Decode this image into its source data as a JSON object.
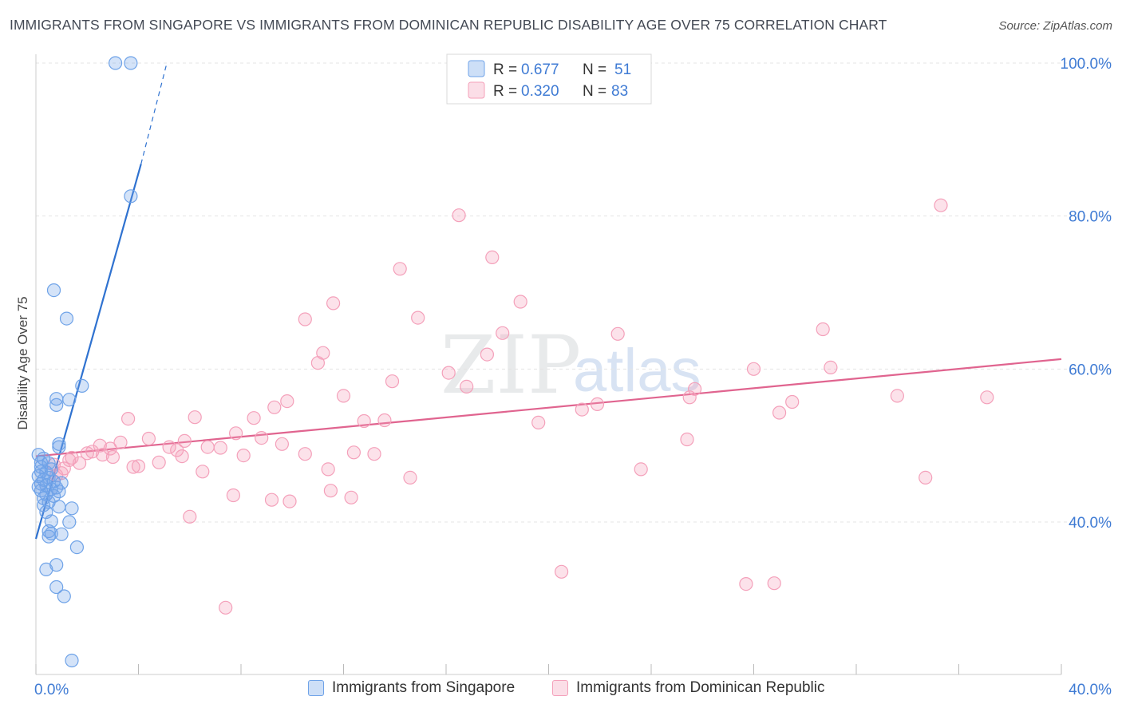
{
  "title": "IMMIGRANTS FROM SINGAPORE VS IMMIGRANTS FROM DOMINICAN REPUBLIC DISABILITY AGE OVER 75 CORRELATION CHART",
  "source": "Source: ZipAtlas.com",
  "watermark": {
    "zip": "ZIP",
    "atlas": "atlas"
  },
  "legend_top": [
    {
      "r_label": "R =",
      "r_value": "0.677",
      "n_label": "N =",
      "n_value": "51"
    },
    {
      "r_label": "R =",
      "r_value": "0.320",
      "n_label": "N =",
      "n_value": "83"
    }
  ],
  "chart_data": {
    "type": "scatter",
    "title": "IMMIGRANTS FROM SINGAPORE VS IMMIGRANTS FROM DOMINICAN REPUBLIC DISABILITY AGE OVER 75 CORRELATION CHART",
    "xlabel": "",
    "ylabel": "Disability Age Over 75",
    "xlim": [
      0,
      40
    ],
    "ylim": [
      22,
      101
    ],
    "x_tick_labels": [
      {
        "value": 0,
        "label": "0.0%"
      },
      {
        "value": 40,
        "label": "40.0%"
      }
    ],
    "y_tick_labels": [
      {
        "value": 40,
        "label": "40.0%"
      },
      {
        "value": 60,
        "label": "60.0%"
      },
      {
        "value": 80,
        "label": "80.0%"
      },
      {
        "value": 100,
        "label": "100.0%"
      }
    ],
    "colors": {
      "singapore": "#6fa3e8",
      "singapore_line": "#2f72d0",
      "dominican": "#f4a0ba",
      "dominican_line": "#e0648f",
      "tick_label": "#3f7bd4"
    },
    "series": [
      {
        "name": "Immigrants from Singapore",
        "r": 0.677,
        "n": 51,
        "trend": {
          "x0": 0.0,
          "y0": 37.8,
          "x1": 4.1,
          "y1": 86.8,
          "dash_to_x": 5.1,
          "dash_to_y": 99.9
        },
        "points": [
          [
            3.1,
            100.0
          ],
          [
            3.7,
            100.0
          ],
          [
            3.7,
            82.6
          ],
          [
            0.7,
            70.3
          ],
          [
            1.2,
            66.6
          ],
          [
            1.8,
            57.8
          ],
          [
            0.8,
            56.1
          ],
          [
            1.3,
            56.0
          ],
          [
            0.8,
            55.3
          ],
          [
            0.9,
            50.2
          ],
          [
            0.9,
            49.8
          ],
          [
            0.1,
            48.8
          ],
          [
            0.3,
            48.3
          ],
          [
            0.5,
            47.7
          ],
          [
            0.2,
            47.2
          ],
          [
            0.6,
            46.9
          ],
          [
            0.2,
            46.6
          ],
          [
            0.4,
            46.5
          ],
          [
            0.1,
            46.0
          ],
          [
            0.5,
            45.8
          ],
          [
            0.3,
            45.5
          ],
          [
            0.7,
            45.3
          ],
          [
            1.0,
            45.1
          ],
          [
            0.2,
            45.0
          ],
          [
            0.4,
            44.8
          ],
          [
            0.8,
            44.5
          ],
          [
            0.6,
            44.3
          ],
          [
            0.2,
            44.1
          ],
          [
            0.9,
            44.0
          ],
          [
            0.4,
            43.6
          ],
          [
            0.3,
            43.1
          ],
          [
            0.5,
            42.6
          ],
          [
            0.3,
            42.2
          ],
          [
            0.9,
            42.0
          ],
          [
            1.4,
            41.8
          ],
          [
            0.4,
            41.3
          ],
          [
            0.6,
            40.1
          ],
          [
            1.3,
            40.0
          ],
          [
            0.5,
            38.8
          ],
          [
            0.6,
            38.5
          ],
          [
            1.0,
            38.4
          ],
          [
            0.5,
            38.1
          ],
          [
            1.6,
            36.7
          ],
          [
            0.8,
            34.4
          ],
          [
            0.4,
            33.8
          ],
          [
            0.8,
            31.5
          ],
          [
            1.1,
            30.3
          ],
          [
            1.4,
            21.9
          ],
          [
            0.2,
            47.8
          ],
          [
            0.7,
            43.4
          ],
          [
            0.1,
            44.6
          ]
        ]
      },
      {
        "name": "Immigrants from Dominican Republic",
        "r": 0.32,
        "n": 83,
        "trend": {
          "x0": 0.0,
          "y0": 48.6,
          "x1": 40.0,
          "y1": 61.3
        },
        "points": [
          [
            35.3,
            81.4
          ],
          [
            16.5,
            80.1
          ],
          [
            17.8,
            74.6
          ],
          [
            14.2,
            73.1
          ],
          [
            18.9,
            68.8
          ],
          [
            11.6,
            68.6
          ],
          [
            10.5,
            66.5
          ],
          [
            14.9,
            66.7
          ],
          [
            30.7,
            65.2
          ],
          [
            22.7,
            64.6
          ],
          [
            18.2,
            64.7
          ],
          [
            11.2,
            62.1
          ],
          [
            17.6,
            61.9
          ],
          [
            11.0,
            60.8
          ],
          [
            28.0,
            60.0
          ],
          [
            31.0,
            60.2
          ],
          [
            16.1,
            59.5
          ],
          [
            13.9,
            58.4
          ],
          [
            16.8,
            57.7
          ],
          [
            25.7,
            57.4
          ],
          [
            12.0,
            56.5
          ],
          [
            25.5,
            56.3
          ],
          [
            33.6,
            56.5
          ],
          [
            37.1,
            56.3
          ],
          [
            9.8,
            55.8
          ],
          [
            29.5,
            55.7
          ],
          [
            21.9,
            55.4
          ],
          [
            9.3,
            55.0
          ],
          [
            21.3,
            54.7
          ],
          [
            29.0,
            54.3
          ],
          [
            3.6,
            53.5
          ],
          [
            6.2,
            53.7
          ],
          [
            8.5,
            53.6
          ],
          [
            12.8,
            53.2
          ],
          [
            13.6,
            53.3
          ],
          [
            19.6,
            53.0
          ],
          [
            7.8,
            51.6
          ],
          [
            8.8,
            51.0
          ],
          [
            4.4,
            50.9
          ],
          [
            5.8,
            50.6
          ],
          [
            25.4,
            50.8
          ],
          [
            3.3,
            50.4
          ],
          [
            9.6,
            50.2
          ],
          [
            2.5,
            50.0
          ],
          [
            5.2,
            49.8
          ],
          [
            7.2,
            49.7
          ],
          [
            2.9,
            49.6
          ],
          [
            5.5,
            49.4
          ],
          [
            6.7,
            49.8
          ],
          [
            2.2,
            49.2
          ],
          [
            12.4,
            49.1
          ],
          [
            2.0,
            49.0
          ],
          [
            13.2,
            48.9
          ],
          [
            10.5,
            48.9
          ],
          [
            8.1,
            48.7
          ],
          [
            5.7,
            48.6
          ],
          [
            1.4,
            48.4
          ],
          [
            3.0,
            48.5
          ],
          [
            1.7,
            47.7
          ],
          [
            4.8,
            47.8
          ],
          [
            4.0,
            47.3
          ],
          [
            3.8,
            47.2
          ],
          [
            1.1,
            47.0
          ],
          [
            11.4,
            46.9
          ],
          [
            23.6,
            46.9
          ],
          [
            6.5,
            46.6
          ],
          [
            0.8,
            46.1
          ],
          [
            14.6,
            45.8
          ],
          [
            34.7,
            45.8
          ],
          [
            11.5,
            44.1
          ],
          [
            7.7,
            43.5
          ],
          [
            9.2,
            42.9
          ],
          [
            9.9,
            42.7
          ],
          [
            12.3,
            43.2
          ],
          [
            6.0,
            40.7
          ],
          [
            20.5,
            33.5
          ],
          [
            27.7,
            31.9
          ],
          [
            28.8,
            32.0
          ],
          [
            7.4,
            28.8
          ],
          [
            1.3,
            48.1
          ],
          [
            0.7,
            47.5
          ],
          [
            1.0,
            46.4
          ],
          [
            2.6,
            48.8
          ]
        ]
      }
    ]
  }
}
